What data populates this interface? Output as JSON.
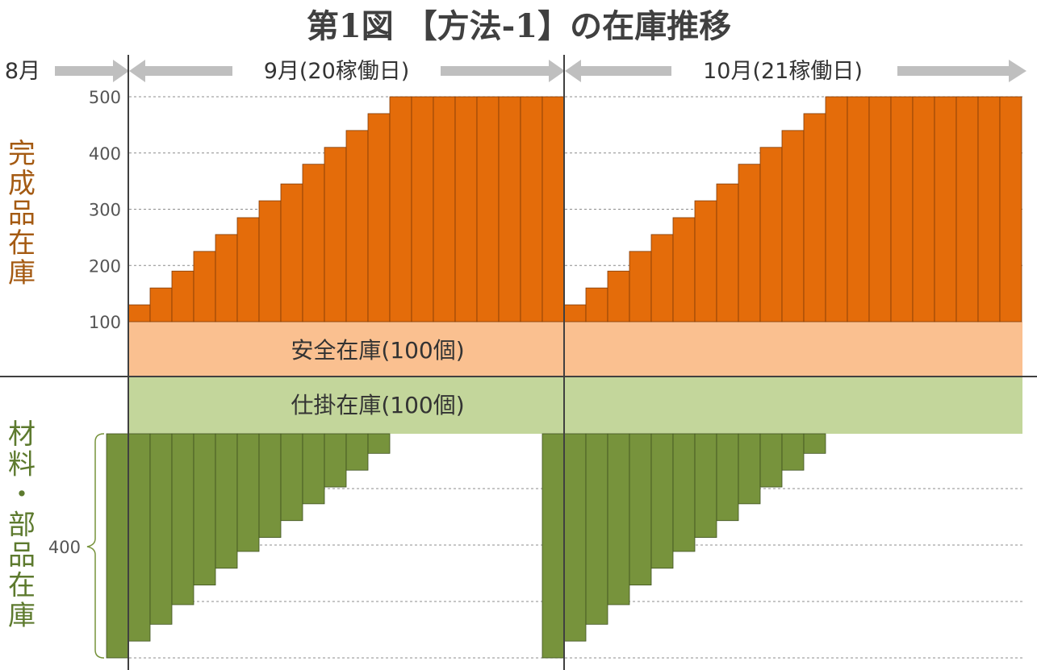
{
  "title": "第1図 【方法-1】の在庫推移",
  "headers": {
    "aug": "8月",
    "sep": "9月(20稼働日)",
    "oct": "10月(21稼働日)"
  },
  "left_labels": {
    "finished": [
      "完",
      "成",
      "品",
      "在",
      "庫"
    ],
    "materials": [
      "材",
      "料",
      "・",
      "部",
      "品",
      "在",
      "庫"
    ]
  },
  "bands": {
    "safety": "安全在庫(100個)",
    "wip": "仕掛在庫(100個)"
  },
  "colors": {
    "finished_bar": "#e46c0a",
    "safety_band": "#fac090",
    "wip_band": "#c3d69b",
    "material_bar": "#77933c",
    "arrow": "#bfbfbf"
  },
  "chart_data": [
    {
      "type": "bar",
      "name": "完成品在庫",
      "title": "第1図 【方法-1】の在庫推移",
      "ylim": [
        100,
        500
      ],
      "yticks": [
        "100",
        "200",
        "300",
        "400",
        "500"
      ],
      "grid": true,
      "september": [
        130,
        160,
        190,
        225,
        255,
        285,
        315,
        345,
        380,
        410,
        440,
        470,
        500,
        500,
        500,
        500,
        500,
        500,
        500,
        500
      ],
      "october": [
        130,
        160,
        190,
        225,
        255,
        285,
        315,
        345,
        380,
        410,
        440,
        470,
        500,
        500,
        500,
        500,
        500,
        500,
        500,
        500,
        500
      ]
    },
    {
      "type": "bar",
      "name": "材料・部品在庫",
      "ylim": [
        0,
        400
      ],
      "yticks": [
        "400"
      ],
      "grid": true,
      "orientation": "downward",
      "august_end": 400,
      "september": [
        370,
        340,
        305,
        270,
        240,
        210,
        185,
        155,
        125,
        95,
        65,
        35,
        0,
        0,
        0,
        0,
        0,
        0,
        0,
        0
      ],
      "september_end": 400,
      "october": [
        370,
        340,
        305,
        270,
        240,
        210,
        185,
        155,
        125,
        95,
        65,
        35,
        0,
        0,
        0,
        0,
        0,
        0,
        0,
        0,
        0
      ]
    }
  ]
}
